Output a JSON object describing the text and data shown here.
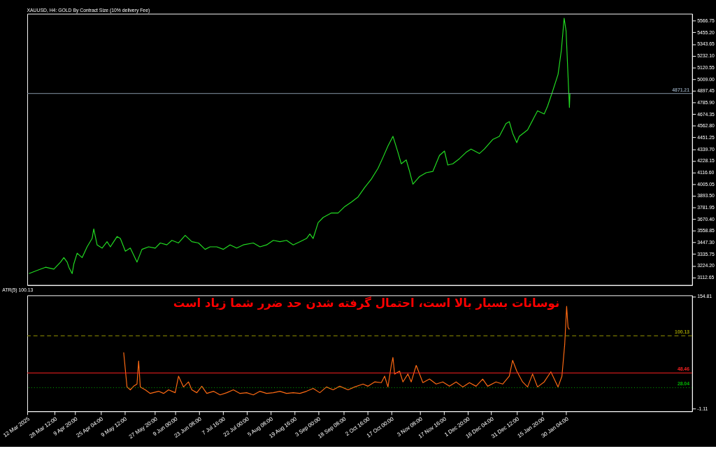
{
  "chart_data": [
    {
      "type": "line",
      "title": "XAUUSD, H4: GOLD By Contract Size (10% delivery Fee)",
      "tick_labels": "y",
      "grid": false,
      "xlim": [
        "2025-03-12",
        "2026-04-16"
      ],
      "ylim": [
        3039,
        5634
      ],
      "yticks": [
        {
          "value": 3112.65,
          "label": "3112.65"
        },
        {
          "value": 3224.2,
          "label": "3224.20"
        },
        {
          "value": 3335.75,
          "label": "3335.75"
        },
        {
          "value": 3447.3,
          "label": "3447.30"
        },
        {
          "value": 3558.85,
          "label": "3558.85"
        },
        {
          "value": 3670.4,
          "label": "3670.40"
        },
        {
          "value": 3781.95,
          "label": "3781.95"
        },
        {
          "value": 3893.5,
          "label": "3893.50"
        },
        {
          "value": 4005.05,
          "label": "4005.05"
        },
        {
          "value": 4116.6,
          "label": "4116.60"
        },
        {
          "value": 4228.15,
          "label": "4228.15"
        },
        {
          "value": 4339.7,
          "label": "4339.70"
        },
        {
          "value": 4451.25,
          "label": "4451.25"
        },
        {
          "value": 4562.8,
          "label": "4562.80"
        },
        {
          "value": 4674.35,
          "label": "4674.35"
        },
        {
          "value": 4785.9,
          "label": "4785.90"
        },
        {
          "value": 4897.45,
          "label": "4897.45"
        },
        {
          "value": 5009.0,
          "label": "5009.00"
        },
        {
          "value": 5120.55,
          "label": "5120.55"
        },
        {
          "value": 5232.1,
          "label": "5232.10"
        },
        {
          "value": 5343.65,
          "label": "5343.65"
        },
        {
          "value": 5455.2,
          "label": "5455.20"
        },
        {
          "value": 5566.75,
          "label": "5566.75"
        }
      ],
      "ref_lines": [
        {
          "axis": "y",
          "value": 4871.21,
          "label": "4871.21",
          "color": "#8899aa",
          "line_style": "solid"
        }
      ],
      "series": [
        {
          "color": "#22dd22",
          "x": [
            "2025-03-13",
            "2025-03-19",
            "2025-03-23",
            "2025-03-28",
            "2025-04-01",
            "2025-04-03",
            "2025-04-05",
            "2025-04-06",
            "2025-04-08",
            "2025-04-09",
            "2025-04-11",
            "2025-04-14",
            "2025-04-17",
            "2025-04-20",
            "2025-04-21",
            "2025-04-23",
            "2025-04-26",
            "2025-04-29",
            "2025-05-01",
            "2025-05-03",
            "2025-05-05",
            "2025-05-07",
            "2025-05-10",
            "2025-05-13",
            "2025-05-17",
            "2025-05-20",
            "2025-05-24",
            "2025-05-28",
            "2025-05-31",
            "2025-06-04",
            "2025-06-07",
            "2025-06-11",
            "2025-06-15",
            "2025-06-19",
            "2025-06-23",
            "2025-06-27",
            "2025-06-30",
            "2025-07-04",
            "2025-07-08",
            "2025-07-12",
            "2025-07-16",
            "2025-07-20",
            "2025-07-26",
            "2025-07-30",
            "2025-08-03",
            "2025-08-07",
            "2025-08-11",
            "2025-08-15",
            "2025-08-19",
            "2025-08-23",
            "2025-08-27",
            "2025-08-29",
            "2025-08-31",
            "2025-09-03",
            "2025-09-06",
            "2025-09-11",
            "2025-09-15",
            "2025-09-19",
            "2025-09-23",
            "2025-09-27",
            "2025-10-01",
            "2025-10-05",
            "2025-10-09",
            "2025-10-12",
            "2025-10-15",
            "2025-10-18",
            "2025-10-21",
            "2025-10-23",
            "2025-10-26",
            "2025-10-28",
            "2025-10-30",
            "2025-11-03",
            "2025-11-07",
            "2025-11-11",
            "2025-11-15",
            "2025-11-18",
            "2025-11-20",
            "2025-11-23",
            "2025-11-27",
            "2025-12-01",
            "2025-12-04",
            "2025-12-09",
            "2025-12-12",
            "2025-12-17",
            "2025-12-21",
            "2025-12-25",
            "2025-12-27",
            "2025-12-29",
            "2025-12-31T12:00",
            "2026-01-02",
            "2026-01-07",
            "2026-01-11",
            "2026-01-13",
            "2026-01-17",
            "2026-01-19",
            "2026-01-22",
            "2026-01-25T08:00",
            "2026-01-27T08:00",
            "2026-01-29T00:00",
            "2026-01-30T04:00",
            "2026-01-31T08:00",
            "2026-02-01T04:00",
            "2026-02-01T12:00"
          ],
          "values": [
            3149,
            3186,
            3210,
            3192,
            3259,
            3302,
            3259,
            3210,
            3149,
            3241,
            3344,
            3302,
            3405,
            3485,
            3576,
            3424,
            3393,
            3454,
            3405,
            3454,
            3503,
            3485,
            3363,
            3393,
            3259,
            3381,
            3405,
            3393,
            3442,
            3424,
            3467,
            3442,
            3515,
            3454,
            3442,
            3381,
            3405,
            3405,
            3381,
            3424,
            3393,
            3424,
            3442,
            3405,
            3424,
            3467,
            3454,
            3467,
            3424,
            3454,
            3485,
            3528,
            3485,
            3637,
            3686,
            3729,
            3729,
            3790,
            3833,
            3882,
            3973,
            4053,
            4156,
            4260,
            4370,
            4462,
            4309,
            4199,
            4236,
            4126,
            4004,
            4077,
            4114,
            4126,
            4279,
            4321,
            4187,
            4199,
            4248,
            4309,
            4340,
            4297,
            4340,
            4431,
            4462,
            4584,
            4602,
            4492,
            4401,
            4462,
            4523,
            4645,
            4706,
            4676,
            4749,
            4889,
            5054,
            5286,
            5591,
            5469,
            5042,
            4737,
            4871
          ]
        }
      ]
    },
    {
      "type": "line",
      "title": "ATR(5) 100.13",
      "grid": false,
      "xlim": [
        "2025-03-12",
        "2026-04-16"
      ],
      "ylim": [
        -4.8,
        156.3
      ],
      "yticks": [
        {
          "value": -1.11,
          "label": "-1.11"
        },
        {
          "value": 154.81,
          "label": "154.81"
        }
      ],
      "xticks": [
        {
          "value": "2025-03-12",
          "label": "12 Mar 2025"
        },
        {
          "value": "2025-03-28T12:00",
          "label": "28 Mar 12:00"
        },
        {
          "value": "2025-04-09T20:00",
          "label": "9 Apr 20:00"
        },
        {
          "value": "2025-04-25T04:00",
          "label": "25 Apr 04:00"
        },
        {
          "value": "2025-05-09T12:00",
          "label": "9 May 12:00"
        },
        {
          "value": "2025-05-27T20:00",
          "label": "27 May 20:00"
        },
        {
          "value": "2025-06-09T00:00",
          "label": "9 Jun 00:00"
        },
        {
          "value": "2025-06-23T08:00",
          "label": "23 Jun 08:00"
        },
        {
          "value": "2025-07-07T16:00",
          "label": "7 Jul 16:00"
        },
        {
          "value": "2025-07-22T00:00",
          "label": "22 Jul 00:00"
        },
        {
          "value": "2025-08-05T08:00",
          "label": "5 Aug 08:00"
        },
        {
          "value": "2025-08-19T16:00",
          "label": "19 Aug 16:00"
        },
        {
          "value": "2025-09-03T00:00",
          "label": "3 Sep 00:00"
        },
        {
          "value": "2025-09-18T08:00",
          "label": "18 Sep 08:00"
        },
        {
          "value": "2025-10-02T16:00",
          "label": "2 Oct 16:00"
        },
        {
          "value": "2025-10-17T00:00",
          "label": "17 Oct 00:00"
        },
        {
          "value": "2025-11-03T08:00",
          "label": "3 Nov 08:00"
        },
        {
          "value": "2025-11-17T16:00",
          "label": "17 Nov 16:00"
        },
        {
          "value": "2025-12-01T20:00",
          "label": "1 Dec 20:00"
        },
        {
          "value": "2025-12-16T04:00",
          "label": "16 Dec 04:00"
        },
        {
          "value": "2025-12-31T12:00",
          "label": "31 Dec 12:00"
        },
        {
          "value": "2026-01-15T20:00",
          "label": "15 Jan 20:00"
        },
        {
          "value": "2026-01-30T04:00",
          "label": "30 Jan 04:00"
        }
      ],
      "annotations": [
        "نوسانات بسیار بالا است، احتمال گرفته شدن حد ضرر شما زیاد است"
      ],
      "ref_lines": [
        {
          "axis": "y",
          "value": 100.13,
          "label": "100.13",
          "color": "#999900",
          "line_style": "dashed"
        },
        {
          "axis": "y",
          "value": 48.46,
          "label": "48.46",
          "color": "#ff2222",
          "line_style": "solid"
        },
        {
          "axis": "y",
          "value": 28.04,
          "label": "28.04",
          "color": "#00bb00",
          "line_style": "dotted"
        }
      ],
      "series": [
        {
          "color": "#ff6a13",
          "x": [
            "2025-05-09",
            "2025-05-11",
            "2025-05-13",
            "2025-05-15",
            "2025-05-17",
            "2025-05-18",
            "2025-05-19",
            "2025-05-22",
            "2025-05-25",
            "2025-05-30",
            "2025-06-02",
            "2025-06-05",
            "2025-06-09",
            "2025-06-11",
            "2025-06-14",
            "2025-06-17",
            "2025-06-19",
            "2025-06-22",
            "2025-06-25",
            "2025-06-28",
            "2025-07-02",
            "2025-07-06",
            "2025-07-10",
            "2025-07-14",
            "2025-07-18",
            "2025-07-22",
            "2025-07-26",
            "2025-07-30",
            "2025-08-03",
            "2025-08-07",
            "2025-08-11",
            "2025-08-15",
            "2025-08-19",
            "2025-08-23",
            "2025-08-27",
            "2025-08-31",
            "2025-09-04",
            "2025-09-08",
            "2025-09-12",
            "2025-09-16",
            "2025-09-21",
            "2025-09-25",
            "2025-09-30",
            "2025-10-03",
            "2025-10-07",
            "2025-10-11",
            "2025-10-13",
            "2025-10-15",
            "2025-10-17",
            "2025-10-18",
            "2025-10-19",
            "2025-10-22",
            "2025-10-24",
            "2025-10-27",
            "2025-10-29",
            "2025-11-01",
            "2025-11-05",
            "2025-11-09",
            "2025-11-13",
            "2025-11-17",
            "2025-11-21",
            "2025-11-25",
            "2025-11-29",
            "2025-12-03",
            "2025-12-07",
            "2025-12-11",
            "2025-12-14",
            "2025-12-19",
            "2025-12-23",
            "2025-12-27",
            "2025-12-29",
            "2025-12-31T12:00",
            "2026-01-04",
            "2026-01-07",
            "2026-01-10",
            "2026-01-13",
            "2026-01-17",
            "2026-01-21",
            "2026-01-25T08:00",
            "2026-01-27T16:00",
            "2026-01-29T08:00",
            "2026-01-30T12:00",
            "2026-01-31T08:00",
            "2026-02-01T04:00"
          ],
          "values": [
            77,
            29,
            25,
            30,
            33,
            65,
            29,
            25,
            20,
            23,
            20,
            25,
            21,
            44,
            29,
            36,
            25,
            21,
            30,
            20,
            23,
            18,
            21,
            25,
            20,
            21,
            18,
            23,
            20,
            21,
            23,
            20,
            21,
            20,
            23,
            27,
            21,
            29,
            25,
            30,
            25,
            29,
            33,
            30,
            36,
            35,
            44,
            29,
            59,
            70,
            47,
            51,
            36,
            47,
            36,
            59,
            35,
            40,
            33,
            36,
            30,
            36,
            29,
            35,
            30,
            40,
            30,
            36,
            33,
            44,
            66,
            51,
            36,
            29,
            47,
            29,
            36,
            50,
            29,
            44,
            88,
            141,
            112,
            109
          ]
        }
      ]
    }
  ]
}
